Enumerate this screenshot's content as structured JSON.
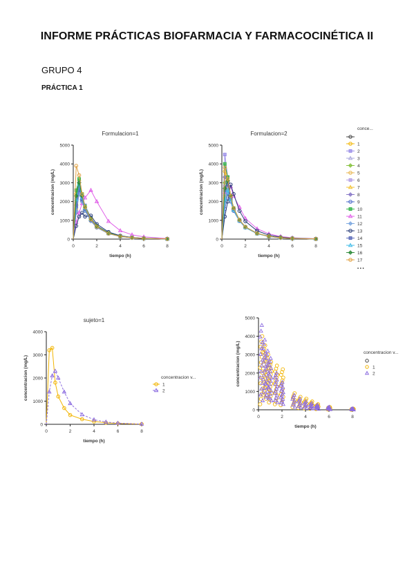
{
  "document": {
    "title": "INFORME PRÁCTICAS BIOFARMACIA Y FARMACOCINÉTICA II",
    "group": "GRUPO 4",
    "practice": "PRÁCTICA 1"
  },
  "chart_data": [
    {
      "type": "line",
      "title": "Formulacion=1",
      "xlabel": "tiempo (h)",
      "ylabel": "concentracion (mg/L)",
      "xlim": [
        0,
        8
      ],
      "ylim": [
        0,
        5000
      ],
      "xticks": [
        "0",
        "2",
        "4",
        "6",
        "8"
      ],
      "yticks": [
        "0",
        "1000",
        "2000",
        "3000",
        "4000",
        "5000"
      ],
      "x": [
        0.25,
        0.5,
        0.75,
        1,
        1.5,
        2,
        3,
        4,
        5,
        6,
        8
      ],
      "series": [
        {
          "name": "1",
          "color": "#f2b400",
          "values": [
            2400,
            3100,
            2300,
            1700,
            1100,
            700,
            330,
            160,
            80,
            40,
            10
          ]
        },
        {
          "name": "2",
          "color": "#9b8fe8",
          "values": [
            1500,
            2600,
            2300,
            1800,
            1150,
            720,
            340,
            170,
            85,
            40,
            10
          ]
        },
        {
          "name": "3",
          "color": "#aaa8dc",
          "values": [
            2000,
            2900,
            2200,
            1650,
            1050,
            680,
            310,
            150,
            75,
            35,
            10
          ]
        },
        {
          "name": "4",
          "color": "#86c23e",
          "values": [
            1800,
            2700,
            2100,
            1600,
            1000,
            650,
            300,
            150,
            75,
            35,
            10
          ]
        },
        {
          "name": "5",
          "color": "#e8b44c",
          "values": [
            1600,
            2500,
            2000,
            1500,
            960,
            610,
            290,
            140,
            70,
            35,
            10
          ]
        },
        {
          "name": "6",
          "color": "#b4a0e6",
          "values": [
            2200,
            3000,
            2300,
            1700,
            1080,
            690,
            320,
            155,
            78,
            38,
            10
          ]
        },
        {
          "name": "7",
          "color": "#f2c230",
          "values": [
            1900,
            2800,
            2200,
            1650,
            1050,
            670,
            310,
            150,
            75,
            36,
            10
          ]
        },
        {
          "name": "8",
          "color": "#8878c8",
          "values": [
            1400,
            2400,
            2100,
            1600,
            1000,
            640,
            300,
            145,
            72,
            35,
            9
          ]
        },
        {
          "name": "9",
          "color": "#4a68c8",
          "values": [
            1700,
            2600,
            2100,
            1550,
            980,
            630,
            295,
            142,
            70,
            34,
            9
          ]
        },
        {
          "name": "10",
          "color": "#36b44a",
          "values": [
            2600,
            3200,
            2400,
            1750,
            1100,
            700,
            330,
            160,
            80,
            38,
            10
          ]
        },
        {
          "name": "11",
          "color": "#e060e8",
          "values": [
            900,
            1400,
            1900,
            2200,
            2600,
            2000,
            950,
            450,
            230,
            120,
            30
          ]
        },
        {
          "name": "12",
          "color": "#7ca8e0",
          "values": [
            1500,
            2400,
            2000,
            1500,
            960,
            610,
            290,
            140,
            70,
            34,
            9
          ]
        },
        {
          "name": "13",
          "color": "#283c78",
          "values": [
            700,
            1200,
            1400,
            1200,
            1250,
            800,
            380,
            180,
            90,
            45,
            12
          ]
        },
        {
          "name": "14",
          "color": "#5a6ab8",
          "values": [
            1800,
            2700,
            2100,
            1600,
            1020,
            650,
            300,
            148,
            73,
            35,
            10
          ]
        },
        {
          "name": "15",
          "color": "#42bce8",
          "values": [
            2100,
            2900,
            2200,
            1650,
            1050,
            670,
            310,
            150,
            75,
            36,
            10
          ]
        },
        {
          "name": "16",
          "color": "#2c8a38",
          "values": [
            2300,
            3000,
            2300,
            1700,
            1080,
            690,
            320,
            155,
            78,
            37,
            10
          ]
        },
        {
          "name": "17",
          "color": "#e0a040",
          "values": [
            3900,
            3400,
            2400,
            1700,
            1050,
            660,
            300,
            145,
            72,
            35,
            10
          ]
        }
      ]
    },
    {
      "type": "line",
      "title": "Formulacion=2",
      "xlabel": "tiempo (h)",
      "ylabel": "concentracion (mg/L)",
      "xlim": [
        0,
        8
      ],
      "ylim": [
        0,
        5000
      ],
      "xticks": [
        "0",
        "2",
        "4",
        "6",
        "8"
      ],
      "yticks": [
        "0",
        "1000",
        "2000",
        "3000",
        "4000",
        "5000"
      ],
      "x": [
        0.25,
        0.5,
        0.75,
        1,
        1.5,
        2,
        3,
        4,
        5,
        6,
        8
      ],
      "series": [
        {
          "name": "1",
          "color": "#f2b400",
          "values": [
            3600,
            3000,
            2200,
            1600,
            1000,
            640,
            300,
            145,
            72,
            35,
            10
          ]
        },
        {
          "name": "2",
          "color": "#9b8fe8",
          "values": [
            4500,
            3300,
            2300,
            1650,
            1020,
            650,
            305,
            148,
            74,
            36,
            10
          ]
        },
        {
          "name": "3",
          "color": "#aaa8dc",
          "values": [
            2400,
            2800,
            2200,
            1600,
            1000,
            640,
            300,
            145,
            72,
            35,
            10
          ]
        },
        {
          "name": "4",
          "color": "#86c23e",
          "values": [
            3000,
            3100,
            2200,
            1600,
            990,
            630,
            295,
            142,
            70,
            34,
            9
          ]
        },
        {
          "name": "5",
          "color": "#e8b44c",
          "values": [
            2200,
            2700,
            2100,
            1550,
            980,
            620,
            290,
            140,
            70,
            34,
            9
          ]
        },
        {
          "name": "6",
          "color": "#b4a0e6",
          "values": [
            2800,
            3000,
            2250,
            1620,
            1000,
            640,
            300,
            145,
            72,
            35,
            10
          ]
        },
        {
          "name": "7",
          "color": "#f2c230",
          "values": [
            2000,
            2600,
            2100,
            1550,
            980,
            620,
            290,
            140,
            70,
            34,
            9
          ]
        },
        {
          "name": "8",
          "color": "#8878c8",
          "values": [
            3300,
            3000,
            2200,
            1600,
            1000,
            640,
            300,
            145,
            72,
            35,
            10
          ]
        },
        {
          "name": "9",
          "color": "#4a68c8",
          "values": [
            1600,
            2400,
            2000,
            1500,
            960,
            610,
            290,
            140,
            70,
            34,
            9
          ]
        },
        {
          "name": "10",
          "color": "#36b44a",
          "values": [
            4000,
            3300,
            2300,
            1650,
            1020,
            650,
            305,
            148,
            74,
            36,
            10
          ]
        },
        {
          "name": "11",
          "color": "#e060e8",
          "values": [
            2500,
            2900,
            2800,
            2300,
            1700,
            1100,
            550,
            280,
            140,
            70,
            18
          ]
        },
        {
          "name": "12",
          "color": "#7ca8e0",
          "values": [
            1900,
            2500,
            2100,
            1550,
            980,
            620,
            290,
            140,
            70,
            34,
            9
          ]
        },
        {
          "name": "13",
          "color": "#283c78",
          "values": [
            1200,
            2000,
            2900,
            2400,
            1500,
            950,
            440,
            210,
            105,
            52,
            13
          ]
        },
        {
          "name": "14",
          "color": "#5a6ab8",
          "values": [
            2600,
            2900,
            2200,
            1600,
            1000,
            640,
            300,
            145,
            72,
            35,
            10
          ]
        },
        {
          "name": "15",
          "color": "#42bce8",
          "values": [
            2100,
            2600,
            2100,
            1550,
            980,
            620,
            290,
            140,
            70,
            34,
            9
          ]
        },
        {
          "name": "16",
          "color": "#2c8a38",
          "values": [
            2700,
            3100,
            2300,
            1650,
            1020,
            650,
            305,
            148,
            74,
            36,
            10
          ]
        },
        {
          "name": "17",
          "color": "#e0a040",
          "values": [
            3800,
            3200,
            2300,
            1650,
            1020,
            650,
            305,
            148,
            74,
            36,
            10
          ]
        }
      ]
    },
    {
      "type": "line",
      "title": "sujeto=1",
      "xlabel": "tiempo (h)",
      "ylabel": "concentracion (mg/L)",
      "legend_title": "concentracion v...",
      "xlim": [
        0,
        8
      ],
      "ylim": [
        0,
        4000
      ],
      "xticks": [
        "0",
        "2",
        "4",
        "6",
        "8"
      ],
      "yticks": [
        "0",
        "1000",
        "2000",
        "3000",
        "4000"
      ],
      "x": [
        0.25,
        0.5,
        0.75,
        1,
        1.5,
        2,
        3,
        4,
        5,
        6,
        8
      ],
      "series": [
        {
          "name": "1",
          "color": "#f2b400",
          "values": [
            3200,
            3300,
            1800,
            1200,
            700,
            400,
            220,
            120,
            70,
            40,
            10
          ]
        },
        {
          "name": "2",
          "color": "#8c6ce0",
          "values": [
            1400,
            2100,
            2300,
            2000,
            1400,
            900,
            420,
            200,
            100,
            50,
            12
          ]
        }
      ]
    },
    {
      "type": "scatter",
      "title": "",
      "xlabel": "tiempo (h)",
      "ylabel": "concentracion (mg/L)",
      "legend_title": "concentracion v...",
      "legend_entries": [
        "1",
        "2"
      ],
      "xlim": [
        0,
        8
      ],
      "ylim": [
        0,
        5000
      ],
      "xticks": [
        "0",
        "2",
        "4",
        "6",
        "8"
      ],
      "yticks": [
        "0",
        "1000",
        "2000",
        "3000",
        "4000",
        "5000"
      ],
      "x": [
        0.25,
        0.5,
        0.75,
        1,
        1.5,
        2,
        3,
        3.5,
        4,
        4.5,
        5,
        6,
        8
      ],
      "series": [
        {
          "name": "1",
          "color": "#f2b400",
          "symbol": "circle",
          "ranges": [
            [
              300,
              4000
            ],
            [
              800,
              3500
            ],
            [
              600,
              3000
            ],
            [
              400,
              2600
            ],
            [
              300,
              2400
            ],
            [
              250,
              2200
            ],
            [
              150,
              900
            ],
            [
              100,
              700
            ],
            [
              80,
              600
            ],
            [
              60,
              450
            ],
            [
              40,
              300
            ],
            [
              20,
              150
            ],
            [
              5,
              60
            ]
          ]
        },
        {
          "name": "2",
          "color": "#8c6ce0",
          "symbol": "triangle",
          "ranges": [
            [
              500,
              4600
            ],
            [
              700,
              3800
            ],
            [
              600,
              3200
            ],
            [
              500,
              2800
            ],
            [
              400,
              2000
            ],
            [
              300,
              1500
            ],
            [
              150,
              800
            ],
            [
              120,
              600
            ],
            [
              90,
              450
            ],
            [
              60,
              350
            ],
            [
              40,
              250
            ],
            [
              20,
              150
            ],
            [
              5,
              60
            ]
          ]
        }
      ]
    }
  ]
}
